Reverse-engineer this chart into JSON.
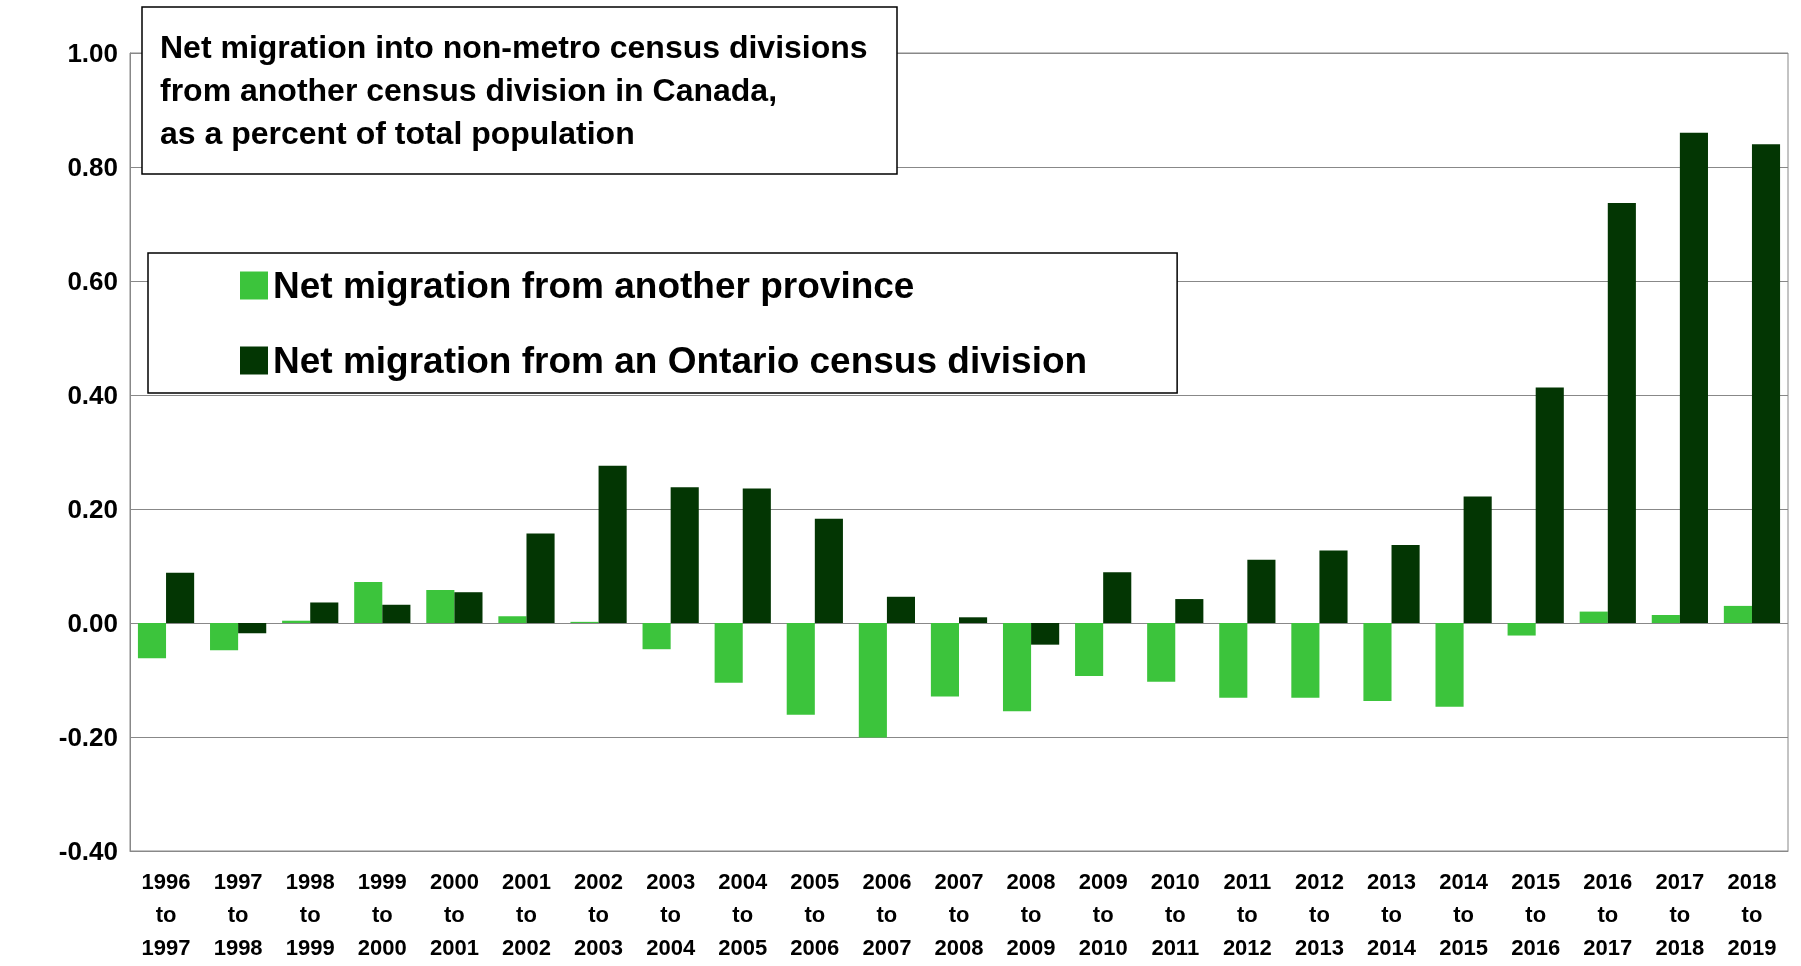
{
  "chart_data": {
    "type": "bar",
    "title": "Net migration into non-metro census divisions\nfrom another census division in Canada,\nas a percent of total population",
    "categories": [
      "1996 to 1997",
      "1997 to 1998",
      "1998 to 1999",
      "1999 to 2000",
      "2000 to 2001",
      "2001 to 2002",
      "2002 to 2003",
      "2003 to 2004",
      "2004 to 2005",
      "2005 to 2006",
      "2006 to 2007",
      "2007 to 2008",
      "2008 to 2009",
      "2009 to 2010",
      "2010 to 2011",
      "2011 to 2012",
      "2012 to 2013",
      "2013 to 2014",
      "2014 to 2015",
      "2015 to 2016",
      "2016 to 2017",
      "2017 to 2018",
      "2018 to 2019"
    ],
    "series": [
      {
        "name": "Net migration from another province",
        "color": "#3cc43c",
        "values": [
          -0.062,
          -0.048,
          0.004,
          0.072,
          0.058,
          0.012,
          0.002,
          -0.046,
          -0.105,
          -0.161,
          -0.201,
          -0.129,
          -0.155,
          -0.093,
          -0.103,
          -0.131,
          -0.131,
          -0.137,
          -0.147,
          -0.022,
          0.02,
          0.014,
          0.03
        ]
      },
      {
        "name": "Net migration from an Ontario census division",
        "color": "#033603",
        "values": [
          0.088,
          -0.018,
          0.036,
          0.032,
          0.054,
          0.157,
          0.276,
          0.238,
          0.236,
          0.183,
          0.046,
          0.01,
          -0.038,
          0.089,
          0.042,
          0.111,
          0.127,
          0.137,
          0.222,
          0.413,
          0.737,
          0.86,
          0.84
        ]
      }
    ],
    "ylim": [
      -0.4,
      1.0
    ],
    "yticks": [
      {
        "value": -0.4,
        "label": "-0.40"
      },
      {
        "value": -0.2,
        "label": "-0.20"
      },
      {
        "value": 0,
        "label": "0.00"
      },
      {
        "value": 0.2,
        "label": "0.20"
      },
      {
        "value": 0.4,
        "label": "0.40"
      },
      {
        "value": 0.6,
        "label": "0.60"
      },
      {
        "value": 0.8,
        "label": "0.80"
      },
      {
        "value": 1.0,
        "label": "1.00"
      }
    ],
    "grid": "y",
    "legend": "top left"
  }
}
